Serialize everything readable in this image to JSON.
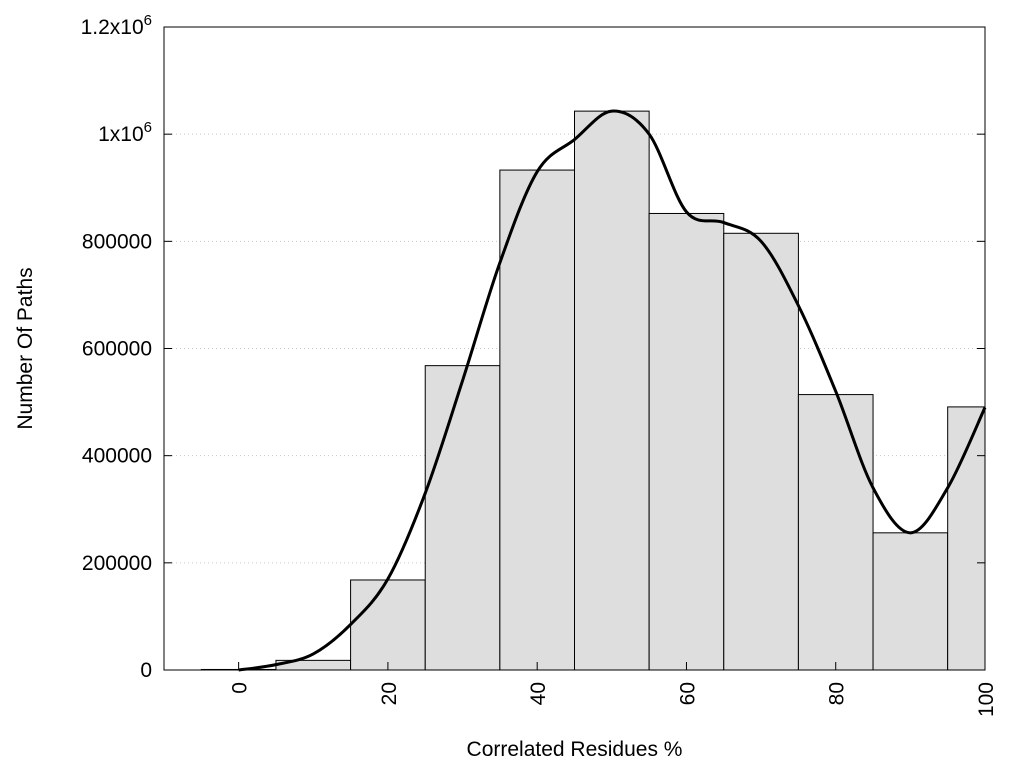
{
  "chart_data": {
    "type": "bar",
    "xlabel": "Correlated Residues %",
    "ylabel": "Number Of Paths",
    "xlim": [
      -10,
      100
    ],
    "ylim": [
      0,
      1200000
    ],
    "grid": true,
    "grid_axis": "y",
    "bar_width": 10,
    "bar_color": "#dedede",
    "curve_color": "#000000",
    "x_ticks": [
      {
        "value": 0,
        "label": "0"
      },
      {
        "value": 20,
        "label": "20"
      },
      {
        "value": 40,
        "label": "40"
      },
      {
        "value": 60,
        "label": "60"
      },
      {
        "value": 80,
        "label": "80"
      },
      {
        "value": 100,
        "label": "100"
      }
    ],
    "y_ticks": [
      {
        "value": 0,
        "label": "0"
      },
      {
        "value": 200000,
        "label": "200000"
      },
      {
        "value": 400000,
        "label": "400000"
      },
      {
        "value": 600000,
        "label": "600000"
      },
      {
        "value": 800000,
        "label": "800000"
      },
      {
        "value": 1000000,
        "label": "1x10",
        "sup": "6"
      },
      {
        "value": 1200000,
        "label": "1.2x10",
        "sup": "6"
      }
    ],
    "bars": [
      {
        "x": 0,
        "value": 1000
      },
      {
        "x": 10,
        "value": 18000
      },
      {
        "x": 20,
        "value": 168000
      },
      {
        "x": 30,
        "value": 568000
      },
      {
        "x": 40,
        "value": 933000
      },
      {
        "x": 50,
        "value": 1043000
      },
      {
        "x": 60,
        "value": 852000
      },
      {
        "x": 70,
        "value": 815000
      },
      {
        "x": 80,
        "value": 514000
      },
      {
        "x": 90,
        "value": 256000
      },
      {
        "x": 100,
        "value": 491000
      }
    ],
    "curve": [
      {
        "x": 0,
        "y": 0
      },
      {
        "x": 5,
        "y": 10000
      },
      {
        "x": 10,
        "y": 30000
      },
      {
        "x": 15,
        "y": 85000
      },
      {
        "x": 20,
        "y": 170000
      },
      {
        "x": 25,
        "y": 330000
      },
      {
        "x": 30,
        "y": 540000
      },
      {
        "x": 35,
        "y": 760000
      },
      {
        "x": 40,
        "y": 930000
      },
      {
        "x": 45,
        "y": 990000
      },
      {
        "x": 50,
        "y": 1043000
      },
      {
        "x": 55,
        "y": 1000000
      },
      {
        "x": 60,
        "y": 855000
      },
      {
        "x": 65,
        "y": 835000
      },
      {
        "x": 70,
        "y": 800000
      },
      {
        "x": 75,
        "y": 680000
      },
      {
        "x": 80,
        "y": 520000
      },
      {
        "x": 85,
        "y": 340000
      },
      {
        "x": 90,
        "y": 256000
      },
      {
        "x": 95,
        "y": 340000
      },
      {
        "x": 100,
        "y": 490000
      }
    ]
  }
}
